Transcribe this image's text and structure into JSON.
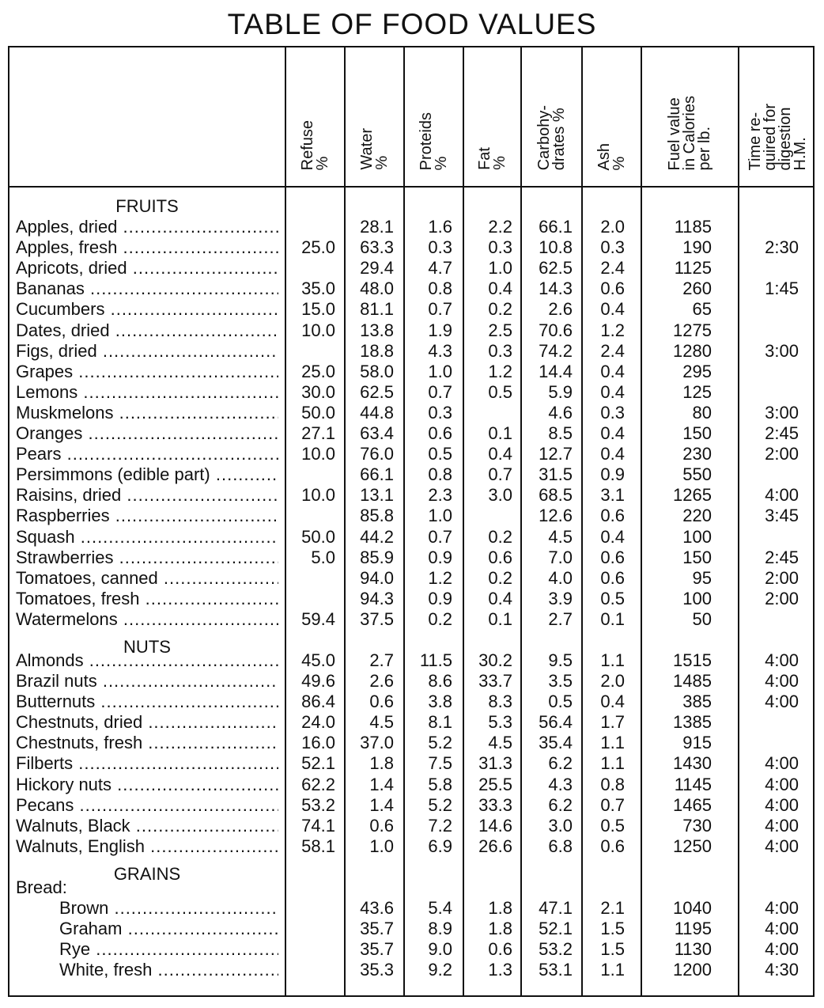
{
  "title": "TABLE OF FOOD VALUES",
  "columns": [
    "Refuse\n%",
    "Water\n%",
    "Proteids\n%",
    "Fat\n%",
    "Carbohy-\ndrates %",
    "Ash\n%",
    "Fuel value\nin Calories\nper lb.",
    "Time re-\nquired for\ndigestion\nH.M."
  ],
  "sections": [
    {
      "heading": "FRUITS",
      "rows": [
        [
          "Apples, dried",
          null,
          "28.1",
          "1.6",
          "2.2",
          "66.1",
          "2.0",
          "1185",
          null
        ],
        [
          "Apples, fresh",
          "25.0",
          "63.3",
          "0.3",
          "0.3",
          "10.8",
          "0.3",
          "190",
          "2:30"
        ],
        [
          "Apricots, dried",
          null,
          "29.4",
          "4.7",
          "1.0",
          "62.5",
          "2.4",
          "1125",
          null
        ],
        [
          "Bananas",
          "35.0",
          "48.0",
          "0.8",
          "0.4",
          "14.3",
          "0.6",
          "260",
          "1:45"
        ],
        [
          "Cucumbers",
          "15.0",
          "81.1",
          "0.7",
          "0.2",
          "2.6",
          "0.4",
          "65",
          null
        ],
        [
          "Dates, dried",
          "10.0",
          "13.8",
          "1.9",
          "2.5",
          "70.6",
          "1.2",
          "1275",
          null
        ],
        [
          "Figs, dried",
          null,
          "18.8",
          "4.3",
          "0.3",
          "74.2",
          "2.4",
          "1280",
          "3:00"
        ],
        [
          "Grapes",
          "25.0",
          "58.0",
          "1.0",
          "1.2",
          "14.4",
          "0.4",
          "295",
          null
        ],
        [
          "Lemons",
          "30.0",
          "62.5",
          "0.7",
          "0.5",
          "5.9",
          "0.4",
          "125",
          null
        ],
        [
          "Muskmelons",
          "50.0",
          "44.8",
          "0.3",
          null,
          "4.6",
          "0.3",
          "80",
          "3:00"
        ],
        [
          "Oranges",
          "27.1",
          "63.4",
          "0.6",
          "0.1",
          "8.5",
          "0.4",
          "150",
          "2:45"
        ],
        [
          "Pears",
          "10.0",
          "76.0",
          "0.5",
          "0.4",
          "12.7",
          "0.4",
          "230",
          "2:00"
        ],
        [
          "Persimmons (edible part)",
          null,
          "66.1",
          "0.8",
          "0.7",
          "31.5",
          "0.9",
          "550",
          null
        ],
        [
          "Raisins, dried",
          "10.0",
          "13.1",
          "2.3",
          "3.0",
          "68.5",
          "3.1",
          "1265",
          "4:00"
        ],
        [
          "Raspberries",
          null,
          "85.8",
          "1.0",
          null,
          "12.6",
          "0.6",
          "220",
          "3:45"
        ],
        [
          "Squash",
          "50.0",
          "44.2",
          "0.7",
          "0.2",
          "4.5",
          "0.4",
          "100",
          null
        ],
        [
          "Strawberries",
          "5.0",
          "85.9",
          "0.9",
          "0.6",
          "7.0",
          "0.6",
          "150",
          "2:45"
        ],
        [
          "Tomatoes, canned",
          null,
          "94.0",
          "1.2",
          "0.2",
          "4.0",
          "0.6",
          "95",
          "2:00"
        ],
        [
          "Tomatoes, fresh",
          null,
          "94.3",
          "0.9",
          "0.4",
          "3.9",
          "0.5",
          "100",
          "2:00"
        ],
        [
          "Watermelons",
          "59.4",
          "37.5",
          "0.2",
          "0.1",
          "2.7",
          "0.1",
          "50",
          null
        ]
      ]
    },
    {
      "heading": "NUTS",
      "rows": [
        [
          "Almonds",
          "45.0",
          "2.7",
          "11.5",
          "30.2",
          "9.5",
          "1.1",
          "1515",
          "4:00"
        ],
        [
          "Brazil nuts",
          "49.6",
          "2.6",
          "8.6",
          "33.7",
          "3.5",
          "2.0",
          "1485",
          "4:00"
        ],
        [
          "Butternuts",
          "86.4",
          "0.6",
          "3.8",
          "8.3",
          "0.5",
          "0.4",
          "385",
          "4:00"
        ],
        [
          "Chestnuts, dried",
          "24.0",
          "4.5",
          "8.1",
          "5.3",
          "56.4",
          "1.7",
          "1385",
          null
        ],
        [
          "Chestnuts, fresh",
          "16.0",
          "37.0",
          "5.2",
          "4.5",
          "35.4",
          "1.1",
          "915",
          null
        ],
        [
          "Filberts",
          "52.1",
          "1.8",
          "7.5",
          "31.3",
          "6.2",
          "1.1",
          "1430",
          "4:00"
        ],
        [
          "Hickory nuts",
          "62.2",
          "1.4",
          "5.8",
          "25.5",
          "4.3",
          "0.8",
          "1145",
          "4:00"
        ],
        [
          "Pecans",
          "53.2",
          "1.4",
          "5.2",
          "33.3",
          "6.2",
          "0.7",
          "1465",
          "4:00"
        ],
        [
          "Walnuts, Black",
          "74.1",
          "0.6",
          "7.2",
          "14.6",
          "3.0",
          "0.5",
          "730",
          "4:00"
        ],
        [
          "Walnuts, English",
          "58.1",
          "1.0",
          "6.9",
          "26.6",
          "6.8",
          "0.6",
          "1250",
          "4:00"
        ]
      ]
    },
    {
      "heading": "GRAINS",
      "subheading": "Bread:",
      "rows": [
        [
          "Brown",
          null,
          "43.6",
          "5.4",
          "1.8",
          "47.1",
          "2.1",
          "1040",
          "4:00"
        ],
        [
          "Graham",
          null,
          "35.7",
          "8.9",
          "1.8",
          "52.1",
          "1.5",
          "1195",
          "4:00"
        ],
        [
          "Rye",
          null,
          "35.7",
          "9.0",
          "0.6",
          "53.2",
          "1.5",
          "1130",
          "4:00"
        ],
        [
          "White, fresh",
          null,
          "35.3",
          "9.2",
          "1.3",
          "53.1",
          "1.1",
          "1200",
          "4:30"
        ]
      ]
    }
  ]
}
